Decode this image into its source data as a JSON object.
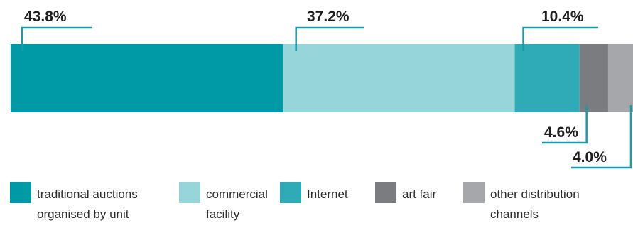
{
  "chart_data": {
    "type": "bar",
    "orientation": "horizontal-stacked",
    "series": [
      {
        "name": "traditional auctions organised by unit",
        "value": 43.8,
        "label": "43.8%",
        "color": "#009aa6"
      },
      {
        "name": "commercial facility",
        "value": 37.2,
        "label": "37.2%",
        "color": "#96d6da"
      },
      {
        "name": "Internet",
        "value": 10.4,
        "label": "10.4%",
        "color": "#2eabb7"
      },
      {
        "name": "art fair",
        "value": 4.6,
        "label": "4.6%",
        "color": "#7a7c80"
      },
      {
        "name": "other distribution channels",
        "value": 4.0,
        "label": "4.0%",
        "color": "#a5a7aa"
      }
    ],
    "callout_color": "#1a9aa8",
    "legend_position": "bottom"
  },
  "legend": {
    "items": [
      {
        "label": "traditional auctions organised by unit",
        "color": "#009aa6"
      },
      {
        "label": "commercial facility",
        "color": "#96d6da"
      },
      {
        "label": "Internet",
        "color": "#2eabb7"
      },
      {
        "label": "art fair",
        "color": "#7a7c80"
      },
      {
        "label": "other distribution channels",
        "color": "#a5a7aa"
      }
    ]
  }
}
